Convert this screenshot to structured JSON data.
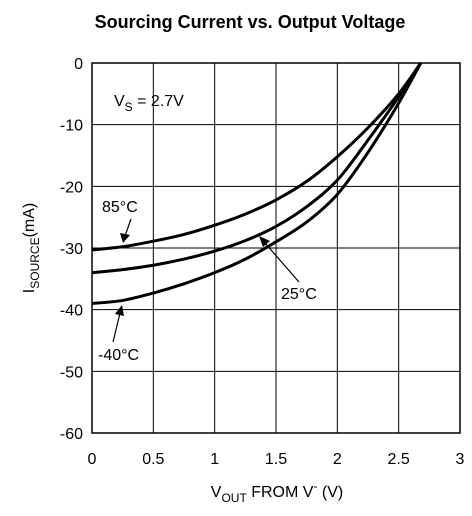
{
  "chart_data": {
    "type": "line",
    "title": "Sourcing Current vs. Output Voltage",
    "xlabel": {
      "main": "V",
      "sub": "OUT",
      "rest": " FROM V",
      "sup": "-",
      "unit": " (V)"
    },
    "ylabel": {
      "main": "I",
      "sub": "SOURCE",
      "unit": "(mA)"
    },
    "xlim": [
      0,
      3
    ],
    "ylim": [
      -60,
      0
    ],
    "x_ticks": [
      "0",
      "0.5",
      "1",
      "1.5",
      "2",
      "2.5",
      "3"
    ],
    "y_ticks": [
      "0",
      "-10",
      "-20",
      "-30",
      "-40",
      "-50",
      "-60"
    ],
    "grid": true,
    "condition": {
      "main": "V",
      "sub": "S",
      "rest": " = 2.7V"
    },
    "series": [
      {
        "name": "85°C",
        "x": [
          0,
          0.25,
          0.5,
          0.75,
          1.0,
          1.25,
          1.5,
          1.75,
          2.0,
          2.25,
          2.5,
          2.68
        ],
        "y": [
          -30.3,
          -29.8,
          -28.9,
          -27.8,
          -26.3,
          -24.5,
          -22.2,
          -19.2,
          -15.2,
          -10.5,
          -5.0,
          0
        ]
      },
      {
        "name": "25°C",
        "x": [
          0,
          0.25,
          0.5,
          0.75,
          1.0,
          1.25,
          1.5,
          1.75,
          2.0,
          2.25,
          2.5,
          2.68
        ],
        "y": [
          -34.0,
          -33.5,
          -32.8,
          -31.8,
          -30.5,
          -28.8,
          -26.5,
          -23.3,
          -19.0,
          -12.5,
          -5.5,
          0
        ]
      },
      {
        "name": "-40°C",
        "x": [
          0,
          0.25,
          0.5,
          0.75,
          1.0,
          1.25,
          1.5,
          1.75,
          2.0,
          2.25,
          2.5,
          2.68
        ],
        "y": [
          -39.0,
          -38.5,
          -37.3,
          -35.8,
          -34.0,
          -31.8,
          -29.0,
          -25.8,
          -21.3,
          -14.5,
          -6.5,
          0
        ]
      }
    ]
  }
}
